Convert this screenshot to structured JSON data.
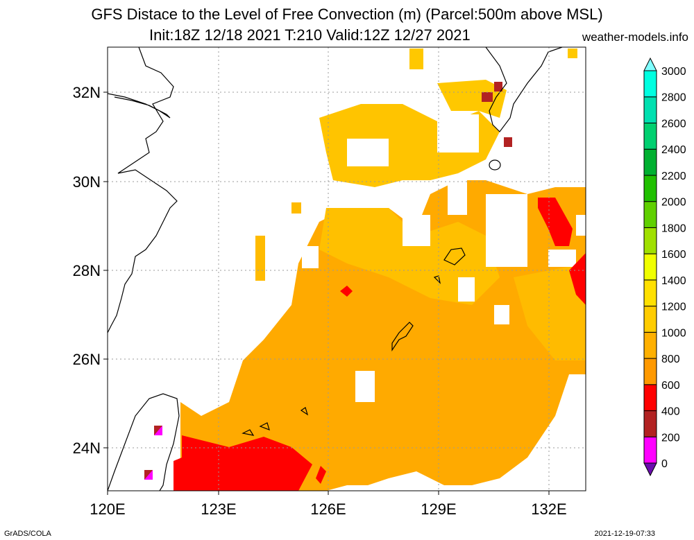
{
  "title": {
    "line1": "GFS Distace to the Level of Free Convection (m) (Parcel:500m above MSL)",
    "line2": "Init:18Z 12/18 2021 T:210 Valid:12Z 12/27 2021",
    "site": "weather-models.info"
  },
  "footer": {
    "left": "GrADS/COLA",
    "right": "2021-12-19-07:33"
  },
  "axes": {
    "lon_labels": [
      "120E",
      "123E",
      "126E",
      "129E",
      "132E"
    ],
    "lat_labels": [
      "32N",
      "30N",
      "28N",
      "26N",
      "24N"
    ],
    "lon_range": [
      120,
      133
    ],
    "lat_range": [
      23,
      33
    ]
  },
  "colorbar": {
    "levels": [
      "0",
      "200",
      "400",
      "600",
      "800",
      "1000",
      "1200",
      "1400",
      "1600",
      "1800",
      "2000",
      "2200",
      "2400",
      "2600",
      "2800",
      "3000"
    ],
    "colors": [
      "#6a0dad",
      "#ff00ff",
      "#b22222",
      "#ff0000",
      "#ff9900",
      "#ffb000",
      "#ffcc00",
      "#ffe000",
      "#f0ff00",
      "#a0e000",
      "#60d000",
      "#20c000",
      "#00b030",
      "#00d070",
      "#00e0b0",
      "#00ffe0",
      "#7fffff"
    ],
    "extend": "both"
  },
  "field": {
    "colors": {
      "red": "#ff0000",
      "orange": "#ffaa00",
      "amber": "#ffc000",
      "yellow": "#ffd000",
      "brown": "#b22222",
      "magenta": "#ff00ff"
    }
  }
}
